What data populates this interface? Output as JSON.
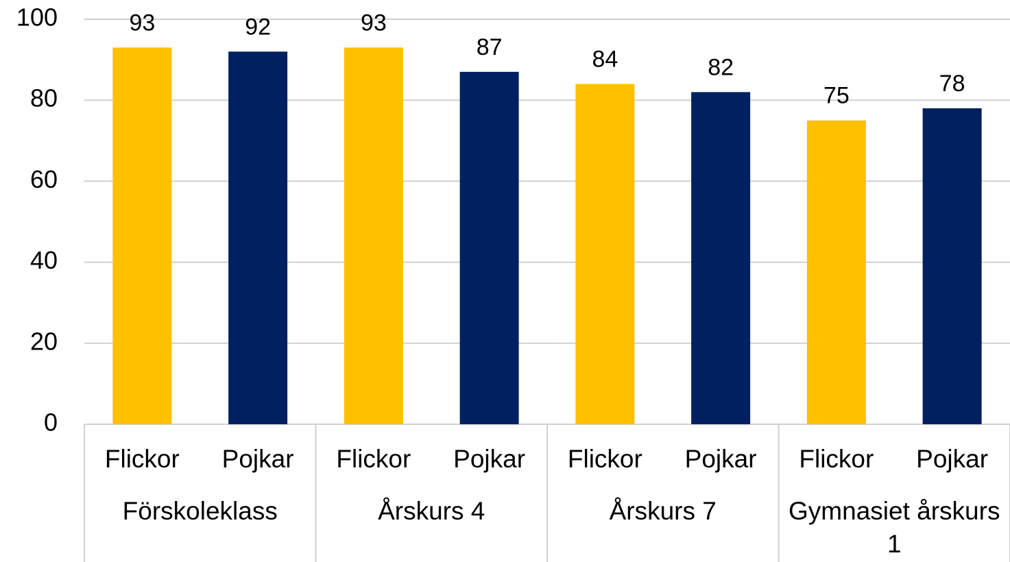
{
  "chart_data": {
    "type": "bar",
    "categories": [
      "Flickor",
      "Pojkar",
      "Flickor",
      "Pojkar",
      "Flickor",
      "Pojkar",
      "Flickor",
      "Pojkar"
    ],
    "groups": [
      "Förskoleklass",
      "Årskurs 4",
      "Årskurs 7",
      "Gymnasiet årskurs 1"
    ],
    "values": [
      93,
      92,
      93,
      87,
      84,
      82,
      75,
      78
    ],
    "colors": [
      "#ffc000",
      "#002060",
      "#ffc000",
      "#002060",
      "#ffc000",
      "#002060",
      "#ffc000",
      "#002060"
    ],
    "ylim": [
      0,
      100
    ],
    "yticks": [
      0,
      20,
      40,
      60,
      80,
      100
    ],
    "grid": true
  }
}
